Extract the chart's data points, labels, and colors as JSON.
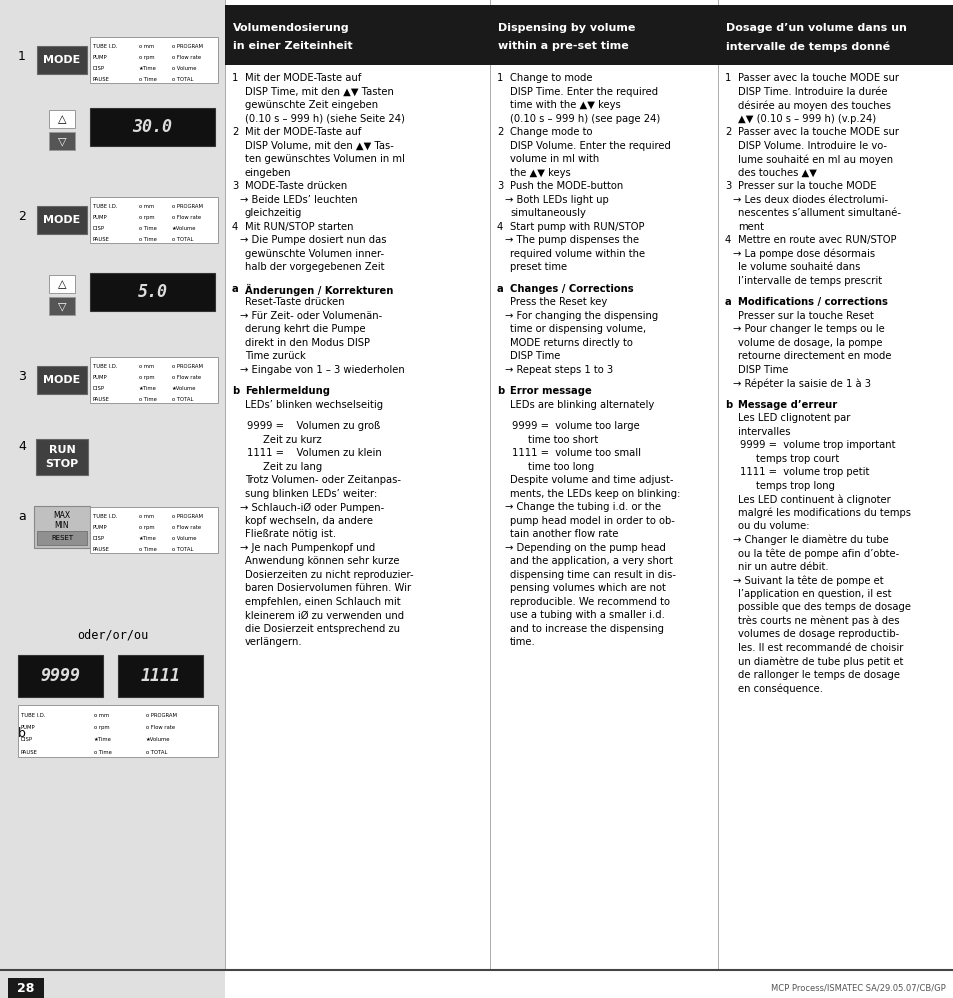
{
  "page_number": "28",
  "footer_text": "MCP Process/ISMATEC SA/29.05.07/CB/GP",
  "bg_color": "#ffffff",
  "left_bg": "#e8e8e8",
  "header_bg": "#1a1a1a",
  "header_fg": "#ffffff",
  "col1_header": "Volumendosierung\nin einer Zeiteinheit",
  "col2_header": "Dispensing by volume\nwithin a pre-set time",
  "col3_header": "Dosage d’un volume dans un\nintervalle de temps donné",
  "col1_body_lines": [
    {
      "t": "1",
      "style": "num",
      "rest": "Mit der MODE-Taste auf"
    },
    {
      "t": "",
      "style": "cont",
      "rest": "DISP Time, mit den ▲▼ Tasten"
    },
    {
      "t": "",
      "style": "cont",
      "rest": "gewünschte Zeit eingeben"
    },
    {
      "t": "",
      "style": "cont",
      "rest": "(0.10 s – 999 h) (siehe Seite 24)"
    },
    {
      "t": "2",
      "style": "num",
      "rest": "Mit der MODE-Taste auf"
    },
    {
      "t": "",
      "style": "cont",
      "rest": "DISP Volume, mit den ▲▼ Tas-"
    },
    {
      "t": "",
      "style": "cont",
      "rest": "ten gewünschtes Volumen in ml"
    },
    {
      "t": "",
      "style": "cont",
      "rest": "eingeben"
    },
    {
      "t": "3",
      "style": "num",
      "rest": "MODE-Taste drücken"
    },
    {
      "t": "→",
      "style": "arrow",
      "rest": " Beide LEDs’ leuchten"
    },
    {
      "t": "",
      "style": "cont",
      "rest": "gleichzeitig"
    },
    {
      "t": "4",
      "style": "num",
      "rest": "Mit RUN/STOP starten"
    },
    {
      "t": "→",
      "style": "arrow",
      "rest": " Die Pumpe dosiert nun das"
    },
    {
      "t": "",
      "style": "cont",
      "rest": "gewünschte Volumen inner-"
    },
    {
      "t": "",
      "style": "cont",
      "rest": "halb der vorgegebenen Zeit"
    },
    {
      "t": "",
      "style": "blank",
      "rest": ""
    },
    {
      "t": "a",
      "style": "head",
      "rest": "Änderungen / Korrekturen"
    },
    {
      "t": "",
      "style": "cont",
      "rest": "Reset-Taste drücken"
    },
    {
      "t": "→",
      "style": "arrow",
      "rest": " Für Zeit- oder Volumenän-"
    },
    {
      "t": "",
      "style": "cont",
      "rest": "derung kehrt die Pumpe"
    },
    {
      "t": "",
      "style": "cont",
      "rest": "direkt in den Modus DISP"
    },
    {
      "t": "",
      "style": "cont",
      "rest": "Time zurück"
    },
    {
      "t": "→",
      "style": "arrow",
      "rest": " Eingabe von 1 – 3 wiederholen"
    },
    {
      "t": "",
      "style": "blank",
      "rest": ""
    },
    {
      "t": "b",
      "style": "head",
      "rest": "Fehlermeldung"
    },
    {
      "t": "",
      "style": "cont",
      "rest": "LEDs’ blinken wechselseitig"
    },
    {
      "t": "",
      "style": "blank",
      "rest": ""
    },
    {
      "t": "",
      "style": "indented",
      "rest": "9999 =    Volumen zu groß"
    },
    {
      "t": "",
      "style": "indented2",
      "rest": "Zeit zu kurz"
    },
    {
      "t": "",
      "style": "indented",
      "rest": "1111 =    Volumen zu klein"
    },
    {
      "t": "",
      "style": "indented2",
      "rest": "Zeit zu lang"
    },
    {
      "t": "",
      "style": "cont",
      "rest": "Trotz Volumen- oder Zeitanpas-"
    },
    {
      "t": "",
      "style": "cont",
      "rest": "sung blinken LEDs’ weiter:"
    },
    {
      "t": "→",
      "style": "arrow",
      "rest": " Schlauch-iØ oder Pumpen-"
    },
    {
      "t": "",
      "style": "cont",
      "rest": "kopf wechseln, da andere"
    },
    {
      "t": "",
      "style": "cont",
      "rest": "Fließrate nötig ist."
    },
    {
      "t": "→",
      "style": "arrow",
      "rest": " Je nach Pumpenkopf und"
    },
    {
      "t": "",
      "style": "cont",
      "rest": "Anwendung können sehr kurze"
    },
    {
      "t": "",
      "style": "cont",
      "rest": "Dosierzeiten zu nicht reproduzier-"
    },
    {
      "t": "",
      "style": "cont",
      "rest": "baren Dosiervolumen führen. Wir"
    },
    {
      "t": "",
      "style": "cont",
      "rest": "empfehlen, einen Schlauch mit"
    },
    {
      "t": "",
      "style": "cont",
      "rest": "kleinerem iØ zu verwenden und"
    },
    {
      "t": "",
      "style": "cont",
      "rest": "die Dosierzeit entsprechend zu"
    },
    {
      "t": "",
      "style": "cont",
      "rest": "verlängern."
    }
  ],
  "col2_body_lines": [
    {
      "t": "1",
      "style": "num",
      "rest": "Change to mode"
    },
    {
      "t": "",
      "style": "cont",
      "rest": "DISP Time. Enter the required"
    },
    {
      "t": "",
      "style": "cont",
      "rest": "time with the ▲▼ keys"
    },
    {
      "t": "",
      "style": "cont",
      "rest": "(0.10 s – 999 h) (see page 24)"
    },
    {
      "t": "2",
      "style": "num",
      "rest": "Change mode to"
    },
    {
      "t": "",
      "style": "cont",
      "rest": "DISP Volume. Enter the required"
    },
    {
      "t": "",
      "style": "cont",
      "rest": "volume in ml with"
    },
    {
      "t": "",
      "style": "cont",
      "rest": "the ▲▼ keys"
    },
    {
      "t": "3",
      "style": "num",
      "rest": "Push the MODE-button"
    },
    {
      "t": "→",
      "style": "arrow",
      "rest": " Both LEDs light up"
    },
    {
      "t": "",
      "style": "cont",
      "rest": "simultaneously"
    },
    {
      "t": "4",
      "style": "num",
      "rest": "Start pump with RUN/STOP"
    },
    {
      "t": "→",
      "style": "arrow",
      "rest": " The pump dispenses the"
    },
    {
      "t": "",
      "style": "cont",
      "rest": "required volume within the"
    },
    {
      "t": "",
      "style": "cont",
      "rest": "preset time"
    },
    {
      "t": "",
      "style": "blank",
      "rest": ""
    },
    {
      "t": "a",
      "style": "head",
      "rest": "Changes / Corrections"
    },
    {
      "t": "",
      "style": "cont",
      "rest": "Press the Reset key"
    },
    {
      "t": "→",
      "style": "arrow",
      "rest": " For changing the dispensing"
    },
    {
      "t": "",
      "style": "cont",
      "rest": "time or dispensing volume,"
    },
    {
      "t": "",
      "style": "cont",
      "rest": "MODE returns directly to"
    },
    {
      "t": "",
      "style": "cont",
      "rest": "DISP Time"
    },
    {
      "t": "→",
      "style": "arrow",
      "rest": " Repeat steps 1 to 3"
    },
    {
      "t": "",
      "style": "blank",
      "rest": ""
    },
    {
      "t": "b",
      "style": "head",
      "rest": "Error message"
    },
    {
      "t": "",
      "style": "cont",
      "rest": "LEDs are blinking alternately"
    },
    {
      "t": "",
      "style": "blank",
      "rest": ""
    },
    {
      "t": "",
      "style": "indented",
      "rest": "9999 =  volume too large"
    },
    {
      "t": "",
      "style": "indented2",
      "rest": "time too short"
    },
    {
      "t": "",
      "style": "indented",
      "rest": "1111 =  volume too small"
    },
    {
      "t": "",
      "style": "indented2",
      "rest": "time too long"
    },
    {
      "t": "",
      "style": "cont",
      "rest": "Despite volume and time adjust-"
    },
    {
      "t": "",
      "style": "cont",
      "rest": "ments, the LEDs keep on blinking:"
    },
    {
      "t": "→",
      "style": "arrow",
      "rest": " Change the tubing i.d. or the"
    },
    {
      "t": "",
      "style": "cont",
      "rest": "pump head model in order to ob-"
    },
    {
      "t": "",
      "style": "cont",
      "rest": "tain another flow rate"
    },
    {
      "t": "→",
      "style": "arrow",
      "rest": " Depending on the pump head"
    },
    {
      "t": "",
      "style": "cont",
      "rest": "and the application, a very short"
    },
    {
      "t": "",
      "style": "cont",
      "rest": "dispensing time can result in dis-"
    },
    {
      "t": "",
      "style": "cont",
      "rest": "pensing volumes which are not"
    },
    {
      "t": "",
      "style": "cont",
      "rest": "reproducible. We recommend to"
    },
    {
      "t": "",
      "style": "cont",
      "rest": "use a tubing with a smaller i.d."
    },
    {
      "t": "",
      "style": "cont",
      "rest": "and to increase the dispensing"
    },
    {
      "t": "",
      "style": "cont",
      "rest": "time."
    }
  ],
  "col3_body_lines": [
    {
      "t": "1",
      "style": "num",
      "rest": "Passer avec la touche MODE sur"
    },
    {
      "t": "",
      "style": "cont",
      "rest": "DISP Time. Introduire la durée"
    },
    {
      "t": "",
      "style": "cont",
      "rest": "désirée au moyen des touches"
    },
    {
      "t": "",
      "style": "cont",
      "rest": "▲▼ (0.10 s – 999 h) (v.p.24)"
    },
    {
      "t": "2",
      "style": "num",
      "rest": "Passer avec la touche MODE sur"
    },
    {
      "t": "",
      "style": "cont",
      "rest": "DISP Volume. Introduire le vo-"
    },
    {
      "t": "",
      "style": "cont",
      "rest": "lume souhaité en ml au moyen"
    },
    {
      "t": "",
      "style": "cont",
      "rest": "des touches ▲▼"
    },
    {
      "t": "3",
      "style": "num",
      "rest": "Presser sur la touche MODE"
    },
    {
      "t": "→",
      "style": "arrow",
      "rest": " Les deux diodes électrolumi-"
    },
    {
      "t": "",
      "style": "cont",
      "rest": "nescentes s’allument simultané-"
    },
    {
      "t": "",
      "style": "cont",
      "rest": "ment"
    },
    {
      "t": "4",
      "style": "num",
      "rest": "Mettre en route avec RUN/STOP"
    },
    {
      "t": "→",
      "style": "arrow",
      "rest": " La pompe dose désormais"
    },
    {
      "t": "",
      "style": "cont",
      "rest": "le volume souhaité dans"
    },
    {
      "t": "",
      "style": "cont",
      "rest": "l’intervalle de temps prescrit"
    },
    {
      "t": "",
      "style": "blank",
      "rest": ""
    },
    {
      "t": "a",
      "style": "head",
      "rest": "Modifications / corrections"
    },
    {
      "t": "",
      "style": "cont",
      "rest": "Presser sur la touche Reset"
    },
    {
      "t": "→",
      "style": "arrow",
      "rest": " Pour changer le temps ou le"
    },
    {
      "t": "",
      "style": "cont",
      "rest": "volume de dosage, la pompe"
    },
    {
      "t": "",
      "style": "cont",
      "rest": "retourne directement en mode"
    },
    {
      "t": "",
      "style": "cont",
      "rest": "DISP Time"
    },
    {
      "t": "→",
      "style": "arrow",
      "rest": " Répéter la saisie de 1 à 3"
    },
    {
      "t": "",
      "style": "blank",
      "rest": ""
    },
    {
      "t": "b",
      "style": "head",
      "rest": "Message d’erreur"
    },
    {
      "t": "",
      "style": "cont",
      "rest": "Les LED clignotent par"
    },
    {
      "t": "",
      "style": "cont",
      "rest": "intervalles"
    },
    {
      "t": "",
      "style": "indented",
      "rest": "9999 =  volume trop important"
    },
    {
      "t": "",
      "style": "indented2",
      "rest": "temps trop court"
    },
    {
      "t": "",
      "style": "indented",
      "rest": "1111 =  volume trop petit"
    },
    {
      "t": "",
      "style": "indented2",
      "rest": "temps trop long"
    },
    {
      "t": "",
      "style": "cont",
      "rest": "Les LED continuent à clignoter"
    },
    {
      "t": "",
      "style": "cont",
      "rest": "malgré les modifications du temps"
    },
    {
      "t": "",
      "style": "cont",
      "rest": "ou du volume:"
    },
    {
      "t": "→",
      "style": "arrow",
      "rest": " Changer le diamètre du tube"
    },
    {
      "t": "",
      "style": "cont",
      "rest": "ou la tête de pompe afin d’obte-"
    },
    {
      "t": "",
      "style": "cont",
      "rest": "nir un autre débit."
    },
    {
      "t": "→",
      "style": "arrow",
      "rest": " Suivant la tête de pompe et"
    },
    {
      "t": "",
      "style": "cont",
      "rest": "l’application en question, il est"
    },
    {
      "t": "",
      "style": "cont",
      "rest": "possible que des temps de dosage"
    },
    {
      "t": "",
      "style": "cont",
      "rest": "très courts ne mènent pas à des"
    },
    {
      "t": "",
      "style": "cont",
      "rest": "volumes de dosage reproductib-"
    },
    {
      "t": "",
      "style": "cont",
      "rest": "les. Il est recommandé de choisir"
    },
    {
      "t": "",
      "style": "cont",
      "rest": "un diamètre de tube plus petit et"
    },
    {
      "t": "",
      "style": "cont",
      "rest": "de rallonger le temps de dosage"
    },
    {
      "t": "",
      "style": "cont",
      "rest": "en conséquence."
    }
  ]
}
